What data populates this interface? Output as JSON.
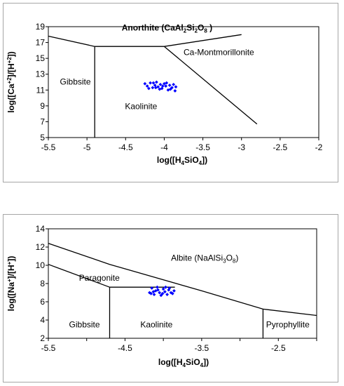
{
  "chart_data": [
    {
      "type": "scatter",
      "title": "",
      "xlabel": {
        "pre": "log([H",
        "sub": "4",
        "mid": "SiO",
        "sub2": "4",
        "post": "])"
      },
      "ylabel": {
        "pre": "log([Ca",
        "sup": "+2",
        "mid": "]/[H",
        "sup2": "+2",
        "post": "])"
      },
      "xlim": [
        -5.5,
        -2
      ],
      "ylim": [
        5,
        19
      ],
      "xticks": [
        "-5.5",
        "-5",
        "-4.5",
        "-4",
        "-3.5",
        "-3",
        "-2.5",
        "-2"
      ],
      "yticks": [
        "5",
        "7",
        "9",
        "11",
        "13",
        "15",
        "17",
        "19"
      ],
      "boundaries": [
        {
          "name": "anorthite-gibbsite",
          "points": [
            [
              -5.5,
              17.8
            ],
            [
              -4.9,
              16.5
            ]
          ]
        },
        {
          "name": "anorthite-kaolinite",
          "points": [
            [
              -4.9,
              16.5
            ],
            [
              -4.0,
              16.5
            ]
          ]
        },
        {
          "name": "anorthite-ca-montmorillonite",
          "points": [
            [
              -4.0,
              16.5
            ],
            [
              -3.0,
              18.0
            ]
          ]
        },
        {
          "name": "gibbsite-kaolinite",
          "points": [
            [
              -4.9,
              16.5
            ],
            [
              -4.9,
              5.0
            ]
          ]
        },
        {
          "name": "kaolinite-ca-montmorillonite",
          "points": [
            [
              -4.0,
              16.5
            ],
            [
              -2.8,
              6.7
            ]
          ]
        }
      ],
      "regions": [
        {
          "name": "anorthite",
          "bold": true,
          "text": {
            "pre": "Anorthite (CaAl",
            "s1": "2",
            "m1": "Si",
            "s2": "2",
            "m2": "O",
            "s3": "8",
            "post": " )"
          },
          "x": -4.55,
          "y": 18.5,
          "anchor": "start"
        },
        {
          "name": "ca-montmorillonite",
          "bold": false,
          "label": "Ca-Montmorillonite",
          "x": -3.75,
          "y": 15.4,
          "anchor": "start"
        },
        {
          "name": "gibbsite",
          "bold": false,
          "label": "Gibbsite",
          "x": -5.35,
          "y": 11.7,
          "anchor": "start"
        },
        {
          "name": "kaolinite",
          "bold": false,
          "label": "Kaolinite",
          "x": -4.3,
          "y": 8.6,
          "anchor": "middle"
        }
      ],
      "marker_color": "#0000ff",
      "points": [
        [
          -4.25,
          11.8
        ],
        [
          -4.22,
          11.5
        ],
        [
          -4.18,
          11.9
        ],
        [
          -4.15,
          11.3
        ],
        [
          -4.12,
          11.6
        ],
        [
          -4.1,
          12.0
        ],
        [
          -4.08,
          11.4
        ],
        [
          -4.05,
          11.7
        ],
        [
          -4.03,
          11.2
        ],
        [
          -4.0,
          11.8
        ],
        [
          -3.98,
          11.5
        ],
        [
          -3.95,
          11.0
        ],
        [
          -3.93,
          11.6
        ],
        [
          -3.9,
          11.3
        ],
        [
          -3.88,
          11.7
        ],
        [
          -3.86,
          10.9
        ],
        [
          -3.85,
          11.4
        ],
        [
          -4.06,
          11.1
        ],
        [
          -4.14,
          11.9
        ],
        [
          -3.97,
          11.9
        ],
        [
          -4.2,
          11.2
        ],
        [
          -4.02,
          11.5
        ],
        [
          -3.92,
          11.1
        ],
        [
          -4.11,
          11.3
        ]
      ]
    },
    {
      "type": "scatter",
      "title": "",
      "xlabel": {
        "pre": "log([H",
        "sub": "4",
        "mid": "SiO",
        "sub2": "4",
        "post": "])"
      },
      "ylabel": {
        "pre": "log([Na",
        "sup": "+",
        "mid": "]/[H",
        "sup2": "+",
        "post": "])"
      },
      "xlim": [
        -5.5,
        -2
      ],
      "ylim": [
        2,
        14
      ],
      "xticks": [
        "-5.5",
        "",
        "-4.5",
        "",
        "-3.5",
        "",
        "-2.5",
        ""
      ],
      "yticks": [
        "2",
        "4",
        "6",
        "8",
        "10",
        "12",
        "14"
      ],
      "boundaries": [
        {
          "name": "albite-upper",
          "points": [
            [
              -5.5,
              12.4
            ],
            [
              -4.7,
              10.1
            ],
            [
              -3.5,
              7.2
            ],
            [
              -2.7,
              5.2
            ],
            [
              -2.0,
              4.5
            ]
          ]
        },
        {
          "name": "paragonite-gibbsite",
          "points": [
            [
              -5.5,
              10.1
            ],
            [
              -4.7,
              7.6
            ]
          ]
        },
        {
          "name": "paragonite-kaolinite",
          "points": [
            [
              -4.7,
              7.6
            ],
            [
              -3.85,
              7.6
            ]
          ]
        },
        {
          "name": "gibbsite-kaolinite",
          "points": [
            [
              -4.7,
              7.6
            ],
            [
              -4.7,
              2.0
            ]
          ]
        },
        {
          "name": "kaolinite-pyrophyllite",
          "points": [
            [
              -2.7,
              5.2
            ],
            [
              -2.7,
              2.0
            ]
          ]
        }
      ],
      "regions": [
        {
          "name": "albite",
          "bold": false,
          "text": {
            "pre": "Albite (NaAlSi",
            "s1": "3",
            "m1": "O",
            "s2": "8",
            "m2": "",
            "s3": "",
            "post": ")"
          },
          "x": -3.9,
          "y": 10.5,
          "anchor": "start"
        },
        {
          "name": "paragonite",
          "bold": false,
          "label": "Paragonite",
          "x": -5.1,
          "y": 8.3,
          "anchor": "start"
        },
        {
          "name": "gibbsite",
          "bold": false,
          "label": "Gibbsite",
          "x": -5.23,
          "y": 3.2,
          "anchor": "start"
        },
        {
          "name": "kaolinite",
          "bold": false,
          "label": "Kaolinite",
          "x": -4.3,
          "y": 3.2,
          "anchor": "start"
        },
        {
          "name": "pyrophyllite",
          "bold": false,
          "label": "Pyrophyllite",
          "x": -2.66,
          "y": 3.2,
          "anchor": "start"
        }
      ],
      "marker_color": "#0000ff",
      "points": [
        [
          -4.18,
          7.0
        ],
        [
          -4.15,
          7.5
        ],
        [
          -4.12,
          6.8
        ],
        [
          -4.1,
          7.2
        ],
        [
          -4.08,
          7.6
        ],
        [
          -4.05,
          7.0
        ],
        [
          -4.03,
          6.7
        ],
        [
          -4.0,
          7.4
        ],
        [
          -3.98,
          7.1
        ],
        [
          -3.95,
          6.8
        ],
        [
          -3.93,
          7.3
        ],
        [
          -3.9,
          7.0
        ],
        [
          -3.88,
          6.9
        ],
        [
          -3.86,
          7.2
        ],
        [
          -4.07,
          7.3
        ],
        [
          -4.13,
          7.1
        ],
        [
          -3.97,
          7.6
        ],
        [
          -4.01,
          6.9
        ],
        [
          -3.92,
          7.5
        ],
        [
          -4.16,
          6.9
        ]
      ]
    }
  ]
}
